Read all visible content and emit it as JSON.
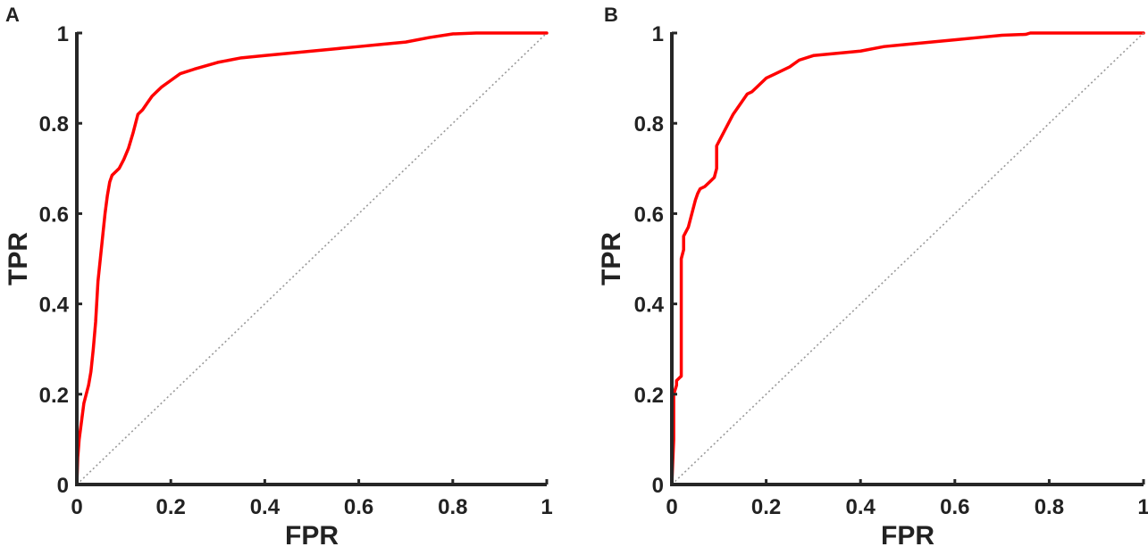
{
  "chart_data": [
    {
      "panel_label": "A",
      "type": "line",
      "xlabel": "FPR",
      "ylabel": "TPR",
      "xlim": [
        0,
        1
      ],
      "ylim": [
        0,
        1
      ],
      "x_ticks": [
        0,
        0.2,
        0.4,
        0.6,
        0.8,
        1
      ],
      "x_tick_labels": [
        "0",
        "0.2",
        "0.4",
        "0.6",
        "0.8",
        "1"
      ],
      "y_ticks": [
        0,
        0.2,
        0.4,
        0.6,
        0.8,
        1
      ],
      "y_tick_labels": [
        "0",
        "0.2",
        "0.4",
        "0.6",
        "0.8",
        "1"
      ],
      "grid": false,
      "series": [
        {
          "color": "#ff0000",
          "style": "solid",
          "x": [
            0,
            0.002,
            0.005,
            0.01,
            0.015,
            0.02,
            0.025,
            0.03,
            0.035,
            0.04,
            0.045,
            0.05,
            0.055,
            0.06,
            0.065,
            0.07,
            0.075,
            0.08,
            0.09,
            0.1,
            0.11,
            0.12,
            0.125,
            0.13,
            0.14,
            0.15,
            0.16,
            0.17,
            0.18,
            0.2,
            0.22,
            0.25,
            0.3,
            0.35,
            0.4,
            0.45,
            0.5,
            0.55,
            0.6,
            0.65,
            0.7,
            0.75,
            0.8,
            0.85,
            0.9,
            0.95,
            1
          ],
          "y": [
            0,
            0.06,
            0.1,
            0.14,
            0.18,
            0.2,
            0.22,
            0.25,
            0.3,
            0.36,
            0.45,
            0.5,
            0.55,
            0.6,
            0.64,
            0.67,
            0.685,
            0.69,
            0.7,
            0.72,
            0.745,
            0.78,
            0.8,
            0.82,
            0.83,
            0.845,
            0.86,
            0.87,
            0.88,
            0.895,
            0.91,
            0.92,
            0.935,
            0.945,
            0.95,
            0.955,
            0.96,
            0.965,
            0.97,
            0.975,
            0.98,
            0.99,
            0.998,
            1,
            1,
            1,
            1
          ]
        },
        {
          "color": "#999999",
          "style": "dotted",
          "x": [
            0,
            1
          ],
          "y": [
            0,
            1
          ]
        }
      ]
    },
    {
      "panel_label": "B",
      "type": "line",
      "xlabel": "FPR",
      "ylabel": "TPR",
      "xlim": [
        0,
        1
      ],
      "ylim": [
        0,
        1
      ],
      "x_ticks": [
        0,
        0.2,
        0.4,
        0.6,
        0.8,
        1
      ],
      "x_tick_labels": [
        "0",
        "0.2",
        "0.4",
        "0.6",
        "0.8",
        "1"
      ],
      "y_ticks": [
        0,
        0.2,
        0.4,
        0.6,
        0.8,
        1
      ],
      "y_tick_labels": [
        "0",
        "0.2",
        "0.4",
        "0.6",
        "0.8",
        "1"
      ],
      "grid": false,
      "series": [
        {
          "color": "#ff0000",
          "style": "solid",
          "x": [
            0,
            0.004,
            0.004,
            0.01,
            0.01,
            0.02,
            0.02,
            0.025,
            0.025,
            0.035,
            0.04,
            0.045,
            0.05,
            0.055,
            0.06,
            0.07,
            0.08,
            0.09,
            0.095,
            0.095,
            0.1,
            0.11,
            0.12,
            0.13,
            0.14,
            0.15,
            0.16,
            0.17,
            0.18,
            0.2,
            0.22,
            0.25,
            0.27,
            0.3,
            0.35,
            0.4,
            0.45,
            0.5,
            0.55,
            0.6,
            0.65,
            0.7,
            0.75,
            0.76,
            0.8,
            0.9,
            1
          ],
          "y": [
            0,
            0.1,
            0.2,
            0.22,
            0.23,
            0.24,
            0.5,
            0.52,
            0.55,
            0.57,
            0.59,
            0.61,
            0.63,
            0.645,
            0.655,
            0.66,
            0.67,
            0.68,
            0.7,
            0.75,
            0.76,
            0.78,
            0.8,
            0.82,
            0.835,
            0.85,
            0.865,
            0.87,
            0.88,
            0.9,
            0.91,
            0.925,
            0.94,
            0.95,
            0.955,
            0.96,
            0.97,
            0.975,
            0.98,
            0.985,
            0.99,
            0.995,
            0.997,
            1,
            1,
            1,
            1
          ]
        },
        {
          "color": "#999999",
          "style": "dotted",
          "x": [
            0,
            1
          ],
          "y": [
            0,
            1
          ]
        }
      ]
    }
  ]
}
